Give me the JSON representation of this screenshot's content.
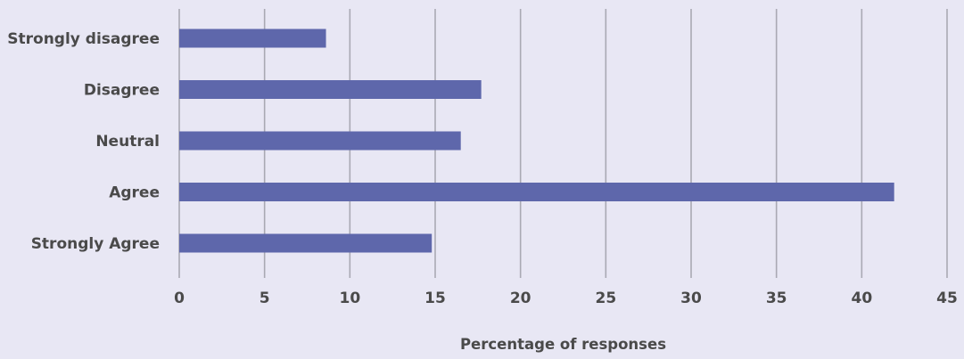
{
  "chart_data": {
    "type": "bar",
    "orientation": "horizontal",
    "categories": [
      "Strongly disagree",
      "Disagree",
      "Neutral",
      "Agree",
      "Strongly Agree"
    ],
    "values": [
      8.6,
      17.7,
      16.5,
      41.9,
      14.8
    ],
    "title": "",
    "xlabel": "Percentage of responses",
    "ylabel": "",
    "xlim": [
      0,
      45
    ],
    "x_ticks": [
      0,
      5,
      10,
      15,
      20,
      25,
      30,
      35,
      40,
      45
    ],
    "grid": "vertical",
    "colors": {
      "bar": "#5e67ab",
      "grid": "#a9a9b3",
      "background": "#e8e7f4",
      "text": "#4a4a4a"
    }
  }
}
